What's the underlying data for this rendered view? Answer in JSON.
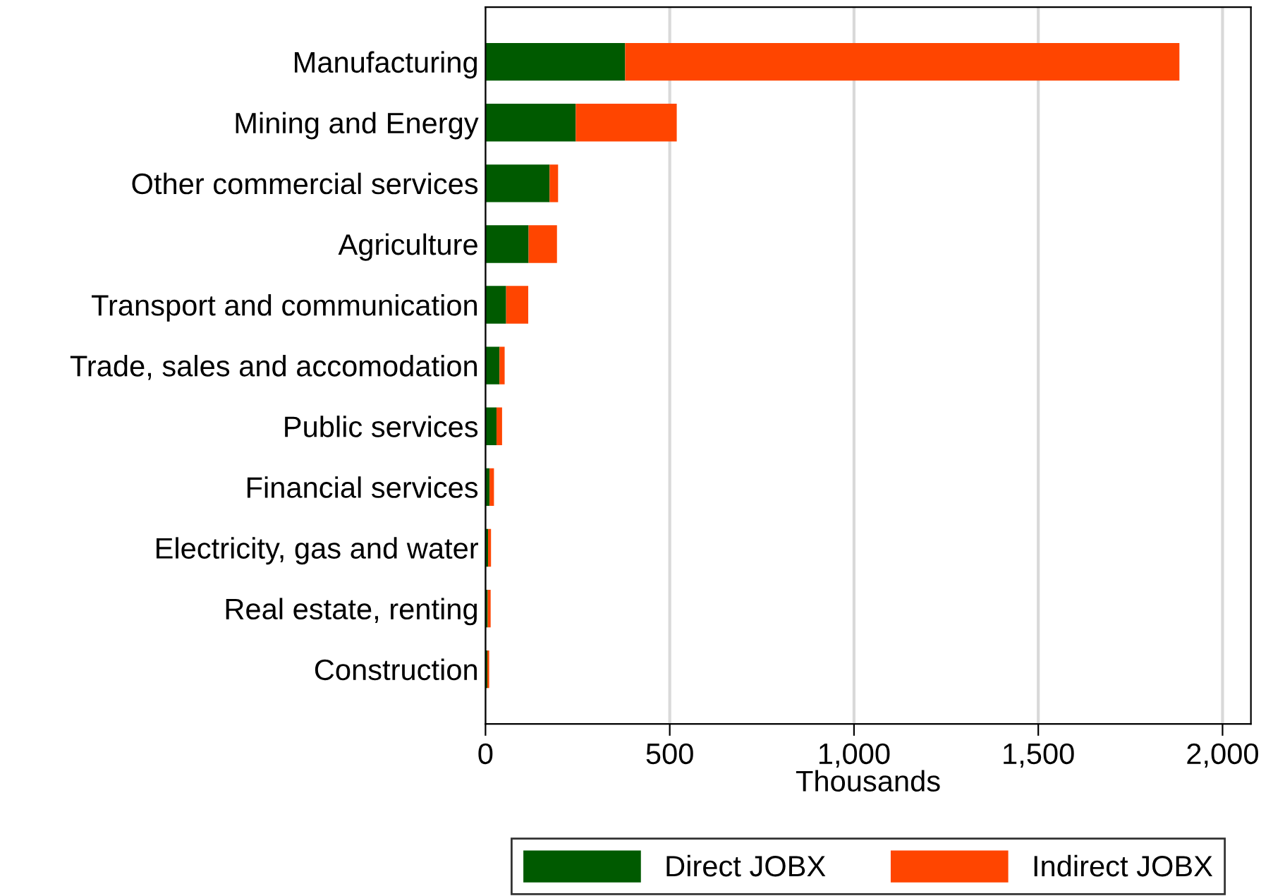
{
  "chart_data": {
    "type": "bar",
    "orientation": "horizontal",
    "stacked": true,
    "xlabel": "Thousands",
    "categories": [
      "Manufacturing",
      "Mining and Energy",
      "Other commercial services",
      "Agriculture",
      "Transport and communication",
      "Trade, sales and accomodation",
      "Public services",
      "Financial services",
      "Electricity, gas and water",
      "Real estate, renting",
      "Construction"
    ],
    "series": [
      {
        "name": "Direct JOBX",
        "color": "#005a00",
        "values": [
          379,
          245,
          174,
          117,
          56,
          38,
          30,
          11,
          7,
          6,
          5
        ]
      },
      {
        "name": "Indirect JOBX",
        "color": "#ff4500",
        "values": [
          1504,
          274,
          23,
          77,
          60,
          14,
          15,
          12,
          8,
          8,
          5
        ]
      }
    ],
    "xlim": [
      0,
      2077
    ],
    "xticks": [
      0,
      500,
      {
        "value": 1000,
        "label": "1,000"
      },
      {
        "value": 1500,
        "label": "1,500"
      },
      {
        "value": 2000,
        "label": "2,000"
      }
    ],
    "grid": "x",
    "legend": "bottom"
  }
}
